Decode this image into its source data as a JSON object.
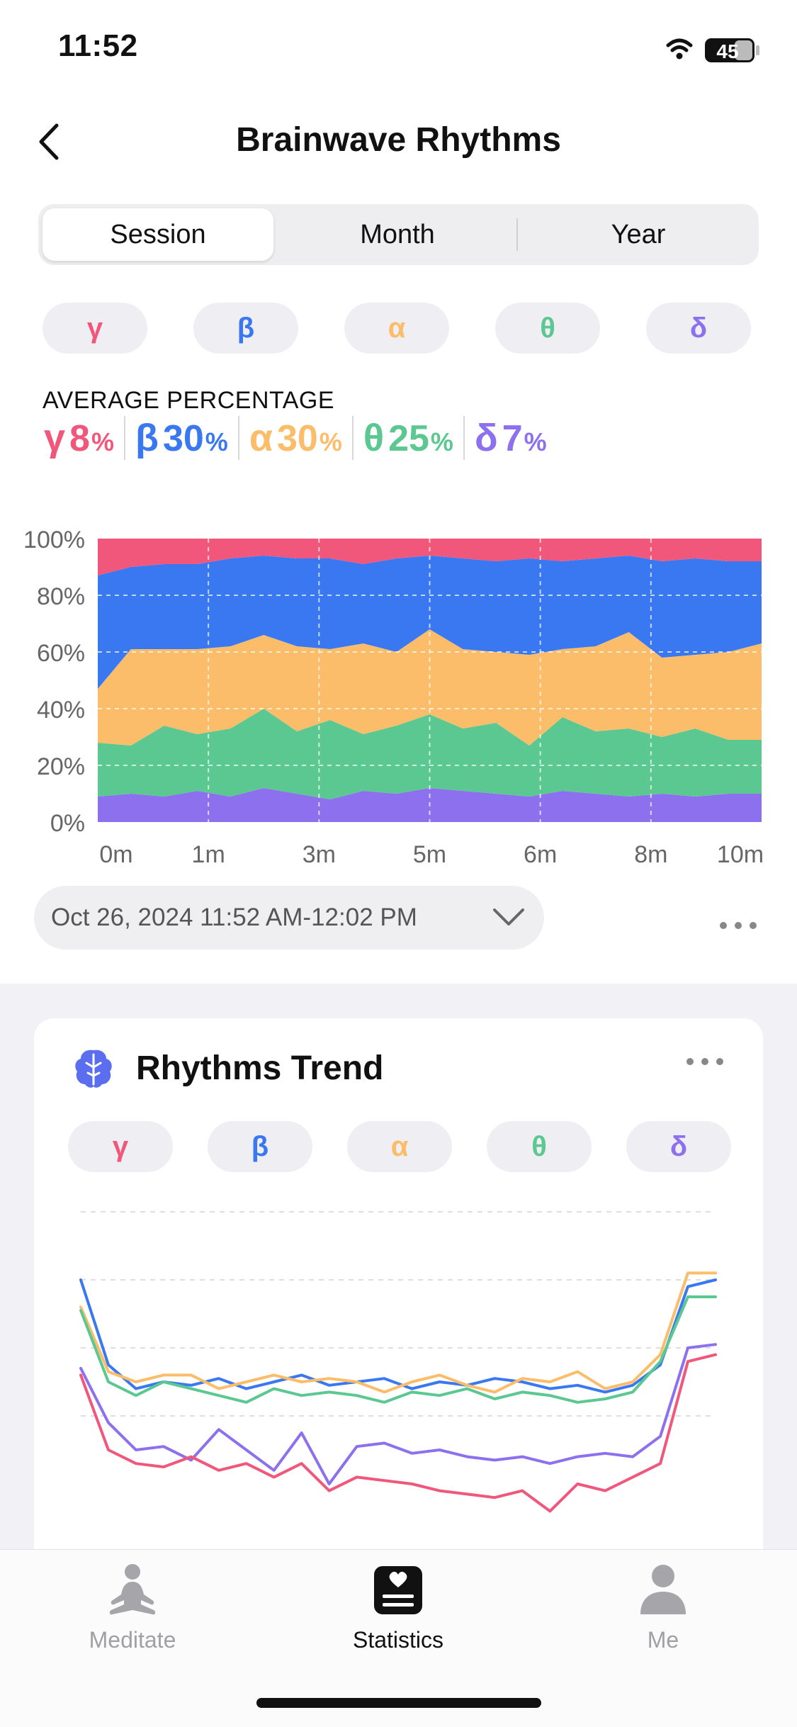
{
  "status": {
    "time": "11:52",
    "battery": "45"
  },
  "header": {
    "title": "Brainwave Rhythms"
  },
  "segments": [
    "Session",
    "Month",
    "Year"
  ],
  "bands": [
    {
      "sym": "γ",
      "color": "#f0577b"
    },
    {
      "sym": "β",
      "color": "#3a78f2"
    },
    {
      "sym": "α",
      "color": "#fbbd6a"
    },
    {
      "sym": "θ",
      "color": "#5cc891"
    },
    {
      "sym": "δ",
      "color": "#8d70ee"
    }
  ],
  "average": {
    "label": "AVERAGE PERCENTAGE",
    "items": [
      {
        "sym": "γ",
        "value": "8",
        "unit": "%"
      },
      {
        "sym": "β",
        "value": "30",
        "unit": "%"
      },
      {
        "sym": "α",
        "value": "30",
        "unit": "%"
      },
      {
        "sym": "θ",
        "value": "25",
        "unit": "%"
      },
      {
        "sym": "δ",
        "value": "7",
        "unit": "%"
      }
    ]
  },
  "chart_data": [
    {
      "type": "area",
      "stacked": true,
      "y_ticks": [
        "100%",
        "80%",
        "60%",
        "40%",
        "20%",
        "0%"
      ],
      "x_ticks": [
        "0m",
        "1m",
        "3m",
        "5m",
        "6m",
        "8m",
        "10m"
      ],
      "ylim": [
        0,
        100
      ],
      "grid": true,
      "x": [
        0,
        0.5,
        1,
        1.5,
        2,
        2.5,
        3,
        3.5,
        4,
        4.5,
        5,
        5.5,
        6,
        6.5,
        7,
        7.5,
        8,
        8.5,
        9,
        9.5,
        10
      ],
      "series": [
        {
          "name": "δ",
          "values": [
            9,
            10,
            9,
            11,
            9,
            12,
            10,
            8,
            11,
            10,
            12,
            11,
            10,
            9,
            11,
            10,
            9,
            10,
            9,
            10,
            10
          ]
        },
        {
          "name": "θ",
          "values": [
            19,
            17,
            25,
            20,
            24,
            28,
            22,
            28,
            20,
            24,
            26,
            22,
            25,
            18,
            26,
            22,
            24,
            20,
            24,
            19,
            19
          ]
        },
        {
          "name": "α",
          "values": [
            19,
            34,
            27,
            30,
            29,
            26,
            30,
            25,
            32,
            26,
            30,
            28,
            25,
            32,
            24,
            30,
            34,
            28,
            26,
            31,
            34
          ]
        },
        {
          "name": "β",
          "values": [
            40,
            29,
            30,
            30,
            31,
            28,
            31,
            32,
            28,
            33,
            26,
            32,
            32,
            34,
            31,
            31,
            27,
            34,
            34,
            32,
            29
          ]
        },
        {
          "name": "γ",
          "values": [
            13,
            10,
            9,
            9,
            7,
            6,
            7,
            7,
            9,
            7,
            6,
            7,
            8,
            7,
            8,
            7,
            6,
            8,
            7,
            8,
            8
          ]
        }
      ]
    },
    {
      "type": "line",
      "x": [
        0,
        1,
        2,
        3,
        4,
        5,
        6,
        7,
        8,
        9,
        10,
        11,
        12,
        13,
        14,
        15,
        16,
        17,
        18,
        19,
        20,
        21,
        22,
        23
      ],
      "series": [
        {
          "name": "β",
          "values": [
            80,
            55,
            48,
            50,
            49,
            51,
            48,
            50,
            52,
            49,
            50,
            51,
            48,
            50,
            49,
            51,
            50,
            48,
            49,
            47,
            49,
            55,
            78,
            80
          ]
        },
        {
          "name": "α",
          "values": [
            72,
            53,
            50,
            52,
            52,
            48,
            50,
            52,
            50,
            51,
            50,
            47,
            50,
            52,
            49,
            47,
            51,
            50,
            53,
            48,
            50,
            58,
            82,
            82
          ]
        },
        {
          "name": "θ",
          "values": [
            71,
            50,
            46,
            50,
            48,
            46,
            44,
            48,
            46,
            47,
            46,
            44,
            47,
            46,
            48,
            45,
            47,
            46,
            44,
            45,
            47,
            56,
            75,
            75
          ]
        },
        {
          "name": "δ",
          "values": [
            54,
            38,
            30,
            31,
            27,
            36,
            30,
            24,
            35,
            20,
            31,
            32,
            29,
            30,
            28,
            27,
            28,
            26,
            28,
            29,
            28,
            34,
            60,
            61
          ]
        },
        {
          "name": "γ",
          "values": [
            52,
            30,
            26,
            25,
            28,
            24,
            26,
            22,
            26,
            18,
            22,
            21,
            20,
            18,
            17,
            16,
            18,
            12,
            20,
            18,
            22,
            26,
            56,
            58
          ]
        }
      ]
    }
  ],
  "date_select": {
    "value": "Oct 26, 2024 11:52 AM-12:02 PM"
  },
  "trend_card": {
    "title": "Rhythms Trend"
  },
  "tabs": [
    {
      "label": "Meditate"
    },
    {
      "label": "Statistics"
    },
    {
      "label": "Me"
    }
  ]
}
